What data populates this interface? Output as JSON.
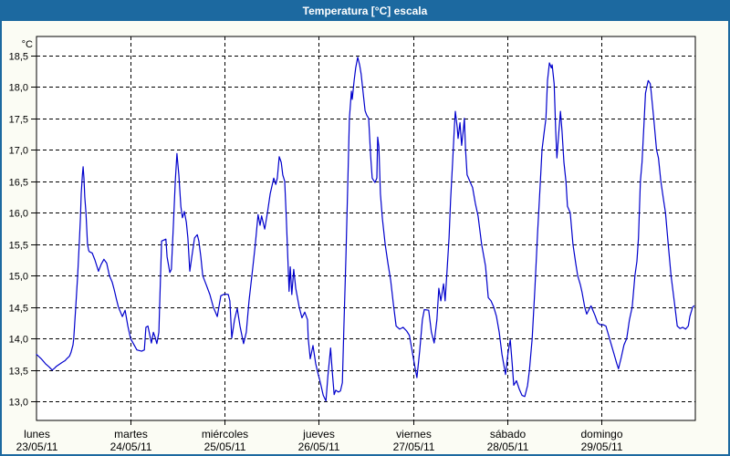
{
  "window": {
    "title": "Temperatura [°C] escala"
  },
  "colors": {
    "titlebar_bg": "#1c69a0",
    "window_border": "#1c69a0",
    "content_bg": "#fbfcf4",
    "plot_bg": "#ffffff",
    "grid": "#000000",
    "axis": "#000000",
    "line": "#0000cc",
    "title_text": "#ffffff",
    "tick_text": "#000000"
  },
  "chart_data": {
    "type": "line",
    "title": "Temperatura [°C] escala",
    "y_unit_label": "°C",
    "grid": "dashed",
    "legend": "none",
    "y_ticks": [
      {
        "label": "18,5",
        "value": 18.5
      },
      {
        "label": "18,0",
        "value": 18.0
      },
      {
        "label": "17,5",
        "value": 17.5
      },
      {
        "label": "17,0",
        "value": 17.0
      },
      {
        "label": "16,5",
        "value": 16.5
      },
      {
        "label": "16,0",
        "value": 16.0
      },
      {
        "label": "15,5",
        "value": 15.5
      },
      {
        "label": "15,0",
        "value": 15.0
      },
      {
        "label": "14,5",
        "value": 14.5
      },
      {
        "label": "14,0",
        "value": 14.0
      },
      {
        "label": "13,5",
        "value": 13.5
      },
      {
        "label": "13,0",
        "value": 13.0
      }
    ],
    "ylim": [
      12.7,
      18.8
    ],
    "x_days": [
      {
        "day": "lunes",
        "date": "23/05/11"
      },
      {
        "day": "martes",
        "date": "24/05/11"
      },
      {
        "day": "miércoles",
        "date": "25/05/11"
      },
      {
        "day": "jueves",
        "date": "26/05/11"
      },
      {
        "day": "viernes",
        "date": "27/05/11"
      },
      {
        "day": "sábado",
        "date": "28/05/11"
      },
      {
        "day": "domingo",
        "date": "29/05/11"
      }
    ],
    "x_range_hours": [
      0,
      168
    ],
    "hours_per_day": 24,
    "series": [
      {
        "name": "Temperatura",
        "color": "#0000cc",
        "points": [
          [
            0,
            13.75
          ],
          [
            1.2,
            13.68
          ],
          [
            2.3,
            13.6
          ],
          [
            3.2,
            13.55
          ],
          [
            4,
            13.5
          ],
          [
            4.6,
            13.53
          ],
          [
            5.1,
            13.56
          ],
          [
            6.5,
            13.62
          ],
          [
            7.3,
            13.65
          ],
          [
            7.7,
            13.68
          ],
          [
            8.4,
            13.72
          ],
          [
            8.8,
            13.78
          ],
          [
            9.3,
            13.9
          ],
          [
            9.5,
            14.0
          ],
          [
            10,
            14.5
          ],
          [
            10.5,
            15.0
          ],
          [
            10.9,
            15.5
          ],
          [
            11.2,
            15.9
          ],
          [
            11.4,
            16.3
          ],
          [
            11.7,
            16.6
          ],
          [
            11.9,
            16.73
          ],
          [
            12.1,
            16.55
          ],
          [
            12.3,
            16.25
          ],
          [
            12.6,
            16.0
          ],
          [
            13,
            15.5
          ],
          [
            13.3,
            15.4
          ],
          [
            13.5,
            15.38
          ],
          [
            14.2,
            15.36
          ],
          [
            14.9,
            15.25
          ],
          [
            15.4,
            15.15
          ],
          [
            15.8,
            15.07
          ],
          [
            16.5,
            15.18
          ],
          [
            17.2,
            15.26
          ],
          [
            17.9,
            15.2
          ],
          [
            18.6,
            15.0
          ],
          [
            19.3,
            14.9
          ],
          [
            19.8,
            14.78
          ],
          [
            20.4,
            14.62
          ],
          [
            20.9,
            14.5
          ],
          [
            21.9,
            14.35
          ],
          [
            22.6,
            14.45
          ],
          [
            23.3,
            14.2
          ],
          [
            24,
            14.0
          ],
          [
            24.7,
            13.92
          ],
          [
            25.6,
            13.82
          ],
          [
            26.8,
            13.8
          ],
          [
            27.5,
            13.82
          ],
          [
            27.9,
            14.18
          ],
          [
            28.4,
            14.2
          ],
          [
            28.9,
            14.05
          ],
          [
            29.3,
            13.93
          ],
          [
            29.8,
            14.1
          ],
          [
            30.2,
            14.03
          ],
          [
            30.7,
            13.92
          ],
          [
            31.2,
            14.1
          ],
          [
            31.4,
            14.5
          ],
          [
            31.9,
            15.55
          ],
          [
            33,
            15.58
          ],
          [
            33.3,
            15.3
          ],
          [
            34,
            15.05
          ],
          [
            34.4,
            15.1
          ],
          [
            34.9,
            15.8
          ],
          [
            35.4,
            16.5
          ],
          [
            35.8,
            16.94
          ],
          [
            36.3,
            16.6
          ],
          [
            36.8,
            16.1
          ],
          [
            37.2,
            15.92
          ],
          [
            37.7,
            16.02
          ],
          [
            38.2,
            15.85
          ],
          [
            38.6,
            15.6
          ],
          [
            39.1,
            15.07
          ],
          [
            39.6,
            15.3
          ],
          [
            40.3,
            15.6
          ],
          [
            41,
            15.65
          ],
          [
            41.4,
            15.55
          ],
          [
            41.9,
            15.3
          ],
          [
            42.4,
            15.0
          ],
          [
            43.3,
            14.85
          ],
          [
            44.2,
            14.7
          ],
          [
            45.1,
            14.5
          ],
          [
            46.1,
            14.35
          ],
          [
            47,
            14.68
          ],
          [
            48,
            14.71
          ],
          [
            48.9,
            14.7
          ],
          [
            49.3,
            14.6
          ],
          [
            49.8,
            14.01
          ],
          [
            50.5,
            14.3
          ],
          [
            51.2,
            14.48
          ],
          [
            51.9,
            14.2
          ],
          [
            52.8,
            13.92
          ],
          [
            53.5,
            14.1
          ],
          [
            54.2,
            14.6
          ],
          [
            55.1,
            15.1
          ],
          [
            55.8,
            15.5
          ],
          [
            56.5,
            15.97
          ],
          [
            57,
            15.8
          ],
          [
            57.4,
            15.95
          ],
          [
            58.2,
            15.74
          ],
          [
            58.9,
            16.0
          ],
          [
            59.6,
            16.3
          ],
          [
            60.5,
            16.55
          ],
          [
            61,
            16.45
          ],
          [
            61.4,
            16.55
          ],
          [
            61.9,
            16.89
          ],
          [
            62.4,
            16.8
          ],
          [
            62.8,
            16.6
          ],
          [
            63.3,
            16.5
          ],
          [
            63.7,
            15.9
          ],
          [
            64.2,
            15.1
          ],
          [
            64.4,
            14.75
          ],
          [
            64.7,
            15.14
          ],
          [
            65.1,
            14.7
          ],
          [
            65.6,
            15.1
          ],
          [
            66.1,
            14.8
          ],
          [
            67,
            14.5
          ],
          [
            67.7,
            14.33
          ],
          [
            68.4,
            14.42
          ],
          [
            69.1,
            14.3
          ],
          [
            69.3,
            14.0
          ],
          [
            69.8,
            13.68
          ],
          [
            70.5,
            13.89
          ],
          [
            71.2,
            13.6
          ],
          [
            71.7,
            13.47
          ],
          [
            72.4,
            13.3
          ],
          [
            73.1,
            13.1
          ],
          [
            73.8,
            13.01
          ],
          [
            74.3,
            13.4
          ],
          [
            75,
            13.85
          ],
          [
            75.4,
            13.5
          ],
          [
            75.9,
            13.11
          ],
          [
            76.3,
            13.18
          ],
          [
            77,
            13.15
          ],
          [
            77.5,
            13.17
          ],
          [
            78,
            13.3
          ],
          [
            78.4,
            14.2
          ],
          [
            78.9,
            15.3
          ],
          [
            79.4,
            16.5
          ],
          [
            79.8,
            17.5
          ],
          [
            80.3,
            17.93
          ],
          [
            80.5,
            17.8
          ],
          [
            81,
            18.1
          ],
          [
            81.4,
            18.3
          ],
          [
            81.9,
            18.47
          ],
          [
            82.4,
            18.35
          ],
          [
            82.8,
            18.2
          ],
          [
            83.3,
            17.9
          ],
          [
            83.8,
            17.62
          ],
          [
            84.2,
            17.55
          ],
          [
            84.7,
            17.5
          ],
          [
            85.2,
            16.9
          ],
          [
            85.6,
            16.55
          ],
          [
            86.3,
            16.48
          ],
          [
            86.8,
            16.55
          ],
          [
            87,
            17.2
          ],
          [
            87.3,
            17.05
          ],
          [
            87.7,
            16.3
          ],
          [
            88.2,
            15.9
          ],
          [
            88.9,
            15.5
          ],
          [
            89.6,
            15.2
          ],
          [
            90.3,
            14.93
          ],
          [
            91,
            14.55
          ],
          [
            91.7,
            14.2
          ],
          [
            92.6,
            14.15
          ],
          [
            93.5,
            14.18
          ],
          [
            94.4,
            14.12
          ],
          [
            95.1,
            14.05
          ],
          [
            95.8,
            13.8
          ],
          [
            96.5,
            13.55
          ],
          [
            97,
            13.38
          ],
          [
            97.7,
            13.8
          ],
          [
            98.4,
            14.3
          ],
          [
            98.9,
            14.46
          ],
          [
            100,
            14.45
          ],
          [
            100.7,
            14.1
          ],
          [
            101.4,
            13.93
          ],
          [
            102.1,
            14.3
          ],
          [
            102.6,
            14.8
          ],
          [
            103.1,
            14.6
          ],
          [
            103.8,
            14.87
          ],
          [
            104.2,
            14.6
          ],
          [
            104.7,
            15.1
          ],
          [
            105.2,
            15.6
          ],
          [
            105.6,
            16.2
          ],
          [
            106.1,
            16.8
          ],
          [
            106.6,
            17.4
          ],
          [
            106.8,
            17.61
          ],
          [
            107.3,
            17.35
          ],
          [
            107.5,
            17.18
          ],
          [
            108,
            17.43
          ],
          [
            108.4,
            17.07
          ],
          [
            108.9,
            17.35
          ],
          [
            109.1,
            17.5
          ],
          [
            109.4,
            17.0
          ],
          [
            109.8,
            16.6
          ],
          [
            110.5,
            16.5
          ],
          [
            111.2,
            16.4
          ],
          [
            111.9,
            16.15
          ],
          [
            112.6,
            15.95
          ],
          [
            113.5,
            15.5
          ],
          [
            114.5,
            15.15
          ],
          [
            115.2,
            14.65
          ],
          [
            115.9,
            14.6
          ],
          [
            116.6,
            14.5
          ],
          [
            117.3,
            14.35
          ],
          [
            118,
            14.1
          ],
          [
            118.7,
            13.75
          ],
          [
            119.6,
            13.43
          ],
          [
            120.3,
            13.8
          ],
          [
            120.8,
            13.98
          ],
          [
            121.3,
            13.6
          ],
          [
            121.7,
            13.26
          ],
          [
            122.4,
            13.33
          ],
          [
            123.1,
            13.2
          ],
          [
            123.8,
            13.1
          ],
          [
            124.5,
            13.08
          ],
          [
            125.2,
            13.25
          ],
          [
            125.7,
            13.5
          ],
          [
            126.4,
            14.0
          ],
          [
            127.1,
            14.8
          ],
          [
            127.8,
            15.7
          ],
          [
            128.5,
            16.5
          ],
          [
            128.9,
            17.0
          ],
          [
            129.4,
            17.25
          ],
          [
            129.9,
            17.5
          ],
          [
            130.3,
            18.1
          ],
          [
            130.8,
            18.38
          ],
          [
            131.3,
            18.3
          ],
          [
            131.5,
            18.35
          ],
          [
            132,
            18.05
          ],
          [
            132.4,
            17.3
          ],
          [
            132.7,
            16.87
          ],
          [
            133.1,
            17.2
          ],
          [
            133.6,
            17.61
          ],
          [
            134,
            17.3
          ],
          [
            134.5,
            16.8
          ],
          [
            135,
            16.5
          ],
          [
            135.4,
            16.1
          ],
          [
            136.1,
            16.0
          ],
          [
            136.8,
            15.5
          ],
          [
            137.5,
            15.2
          ],
          [
            138,
            15.0
          ],
          [
            138.7,
            14.85
          ],
          [
            139.1,
            14.74
          ],
          [
            139.8,
            14.5
          ],
          [
            140.3,
            14.39
          ],
          [
            141,
            14.48
          ],
          [
            141.4,
            14.52
          ],
          [
            142.4,
            14.37
          ],
          [
            143.1,
            14.25
          ],
          [
            143.8,
            14.22
          ],
          [
            144.5,
            14.22
          ],
          [
            145.2,
            14.2
          ],
          [
            145.9,
            14.05
          ],
          [
            146.6,
            13.9
          ],
          [
            147.3,
            13.75
          ],
          [
            148,
            13.6
          ],
          [
            148.4,
            13.52
          ],
          [
            149.1,
            13.7
          ],
          [
            149.8,
            13.9
          ],
          [
            150.5,
            14.0
          ],
          [
            151.2,
            14.3
          ],
          [
            151.9,
            14.5
          ],
          [
            152.6,
            15.0
          ],
          [
            153.1,
            15.23
          ],
          [
            153.5,
            15.6
          ],
          [
            154,
            16.5
          ],
          [
            154.4,
            16.8
          ],
          [
            154.9,
            17.4
          ],
          [
            155.3,
            17.9
          ],
          [
            155.8,
            18.05
          ],
          [
            156,
            18.1
          ],
          [
            156.5,
            18.05
          ],
          [
            156.7,
            17.95
          ],
          [
            157.4,
            17.5
          ],
          [
            158.1,
            17.0
          ],
          [
            158.6,
            16.87
          ],
          [
            159.2,
            16.5
          ],
          [
            159.9,
            16.2
          ],
          [
            160.4,
            16.0
          ],
          [
            161.1,
            15.5
          ],
          [
            161.8,
            15.0
          ],
          [
            162.7,
            14.56
          ],
          [
            163.4,
            14.2
          ],
          [
            164.1,
            14.16
          ],
          [
            164.8,
            14.18
          ],
          [
            165.5,
            14.15
          ],
          [
            166.2,
            14.2
          ],
          [
            166.6,
            14.35
          ],
          [
            167.3,
            14.5
          ],
          [
            167.7,
            14.52
          ]
        ]
      }
    ]
  }
}
